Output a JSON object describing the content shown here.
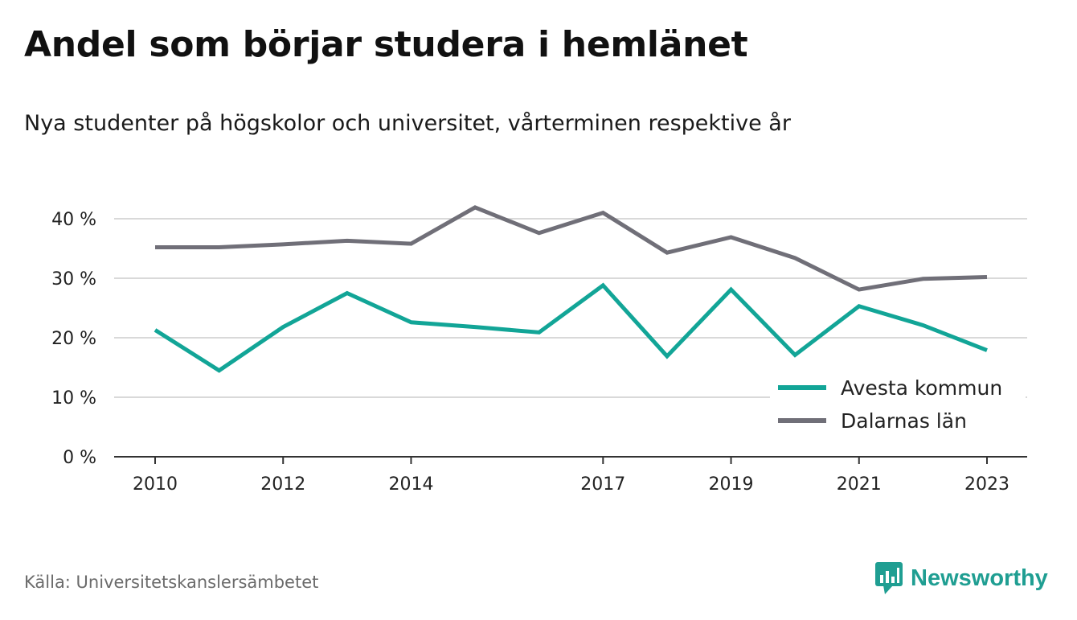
{
  "header": {
    "title": "Andel som börjar studera i hemlänet",
    "subtitle": "Nya studenter på högskolor och universitet, vårterminen respektive år"
  },
  "footer": {
    "source": "Källa: Universitetskanslersämbetet",
    "brand": "Newsworthy",
    "brand_icon": "bar-chart-speech-icon"
  },
  "colors": {
    "avesta": "#12a597",
    "dalarna": "#706f78",
    "grid": "#d9d9d9",
    "axis": "#333333",
    "brand": "#1f9e92"
  },
  "chart_data": {
    "type": "line",
    "x": [
      2010,
      2011,
      2012,
      2013,
      2014,
      2015,
      2016,
      2017,
      2018,
      2019,
      2020,
      2021,
      2022,
      2023
    ],
    "x_tick_labels": [
      "2010",
      "2012",
      "2014",
      "2017",
      "2019",
      "2021",
      "2023"
    ],
    "y_tick_labels": [
      "0 %",
      "10 %",
      "20 %",
      "30 %",
      "40 %"
    ],
    "y_ticks": [
      0,
      10,
      20,
      30,
      40
    ],
    "ylim": [
      0,
      40
    ],
    "xlim": [
      2010,
      2023
    ],
    "grid": true,
    "legend_position": "bottom-right",
    "series": [
      {
        "name": "Avesta kommun",
        "color": "#12a597",
        "values": [
          21.3,
          14.5,
          21.8,
          27.5,
          22.6,
          21.8,
          20.9,
          28.8,
          16.9,
          28.1,
          17.1,
          25.3,
          22.1,
          17.9
        ]
      },
      {
        "name": "Dalarnas län",
        "color": "#706f78",
        "values": [
          35.2,
          35.2,
          35.7,
          36.3,
          35.8,
          41.9,
          37.6,
          41.0,
          34.3,
          36.9,
          33.4,
          28.1,
          29.9,
          30.2
        ]
      }
    ]
  }
}
